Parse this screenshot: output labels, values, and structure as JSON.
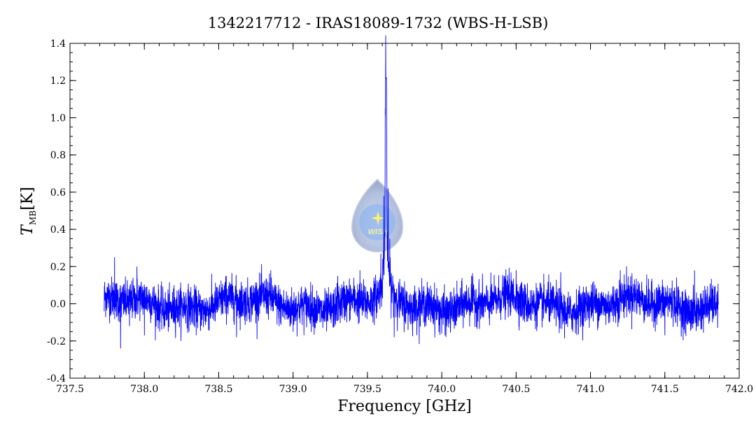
{
  "chart_data": {
    "type": "line",
    "title": "1342217712 - IRAS18089-1732 (WBS-H-LSB)",
    "xlabel": "Frequency [GHz]",
    "ylabel_main": "T",
    "ylabel_sub": "MB",
    "ylabel_unit": "[K]",
    "xlim": [
      737.5,
      742.0
    ],
    "ylim": [
      -0.4,
      1.4
    ],
    "x_ticks": [
      {
        "value": 737.5,
        "label": "737.5"
      },
      {
        "value": 738.0,
        "label": "738.0"
      },
      {
        "value": 738.5,
        "label": "738.5"
      },
      {
        "value": 739.0,
        "label": "739.0"
      },
      {
        "value": 739.5,
        "label": "739.5"
      },
      {
        "value": 740.0,
        "label": "740.0"
      },
      {
        "value": 740.5,
        "label": "740.5"
      },
      {
        "value": 741.0,
        "label": "741.0"
      },
      {
        "value": 741.5,
        "label": "741.5"
      },
      {
        "value": 742.0,
        "label": "742.0"
      }
    ],
    "y_ticks": [
      {
        "value": -0.4,
        "label": "-0.4"
      },
      {
        "value": -0.2,
        "label": "-0.2"
      },
      {
        "value": 0.0,
        "label": "0.0"
      },
      {
        "value": 0.2,
        "label": "0.2"
      },
      {
        "value": 0.4,
        "label": "0.4"
      },
      {
        "value": 0.6,
        "label": "0.6"
      },
      {
        "value": 0.8,
        "label": "0.8"
      },
      {
        "value": 1.0,
        "label": "1.0"
      },
      {
        "value": 1.2,
        "label": "1.2"
      },
      {
        "value": 1.4,
        "label": "1.4"
      }
    ],
    "grid": false,
    "series": [
      {
        "color": "#0000ff",
        "x_start": 737.73,
        "x_end": 741.86,
        "peak_x": 739.625,
        "peak_y": 1.21,
        "noise_rms": 0.055,
        "points": [
          [
            737.73,
            -0.04
          ],
          [
            737.76,
            0.08
          ],
          [
            737.8,
            0.25
          ],
          [
            737.84,
            -0.24
          ],
          [
            737.9,
            -0.12
          ],
          [
            737.95,
            0.2
          ],
          [
            738.0,
            -0.17
          ],
          [
            738.2,
            0.1
          ],
          [
            738.3,
            -0.15
          ],
          [
            738.55,
            0.15
          ],
          [
            738.62,
            -0.18
          ],
          [
            738.85,
            0.18
          ],
          [
            739.0,
            -0.15
          ],
          [
            739.2,
            -0.13
          ],
          [
            739.3,
            0.15
          ],
          [
            739.45,
            0.18
          ],
          [
            739.55,
            0.02
          ],
          [
            739.59,
            0.27
          ],
          [
            739.61,
            0.58
          ],
          [
            739.62,
            1.05
          ],
          [
            739.625,
            1.21
          ],
          [
            739.63,
            0.9
          ],
          [
            739.64,
            0.62
          ],
          [
            739.65,
            0.35
          ],
          [
            739.66,
            0.15
          ],
          [
            739.68,
            -0.18
          ],
          [
            739.75,
            0.12
          ],
          [
            740.0,
            -0.16
          ],
          [
            740.2,
            0.15
          ],
          [
            740.5,
            0.18
          ],
          [
            740.8,
            0.17
          ],
          [
            741.2,
            0.18
          ],
          [
            741.5,
            -0.17
          ],
          [
            741.7,
            0.18
          ],
          [
            741.86,
            0.01
          ]
        ]
      }
    ],
    "watermark_text": "WISH"
  }
}
